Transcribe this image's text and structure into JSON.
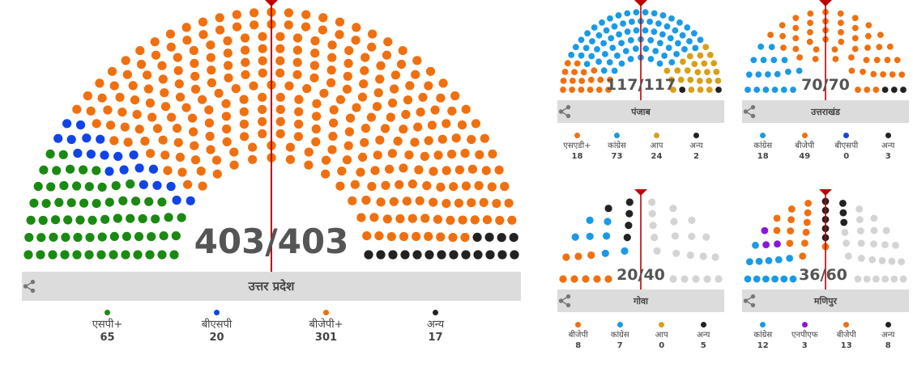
{
  "colors": {
    "sp": "#1a8a12",
    "bsp": "#1144e8",
    "bjp": "#f07010",
    "other": "#222222",
    "congress": "#1a9ae6",
    "aap": "#d8a01a",
    "npf": "#8a18d6",
    "empty": "#d4d4d4",
    "line": "#c00000",
    "bar": "#dcdcdc"
  },
  "chart_data": [
    {
      "type": "parliament",
      "state": "उत्तर प्रदेश",
      "counted": "403",
      "total": "403",
      "tally_label": "403/403",
      "seats": [
        {
          "party": "एसपी+",
          "seats": 65,
          "color": "#1a8a12"
        },
        {
          "party": "बीएसपी",
          "seats": 20,
          "color": "#1144e8"
        },
        {
          "party": "बीजेपी+",
          "seats": 301,
          "color": "#f07010"
        },
        {
          "party": "अन्य",
          "seats": 17,
          "color": "#222222"
        }
      ]
    },
    {
      "type": "parliament",
      "state": "पंजाब",
      "counted": "117",
      "total": "117",
      "tally_label": "117/117",
      "seats": [
        {
          "party": "एसएडी+",
          "seats": 18,
          "color": "#f07010"
        },
        {
          "party": "कांग्रेस",
          "seats": 73,
          "color": "#1a9ae6"
        },
        {
          "party": "आप",
          "seats": 24,
          "color": "#d8a01a"
        },
        {
          "party": "अन्य",
          "seats": 2,
          "color": "#222222"
        }
      ]
    },
    {
      "type": "parliament",
      "state": "उत्तराखंड",
      "counted": "70",
      "total": "70",
      "tally_label": "70/70",
      "seats": [
        {
          "party": "कांग्रेस",
          "seats": 18,
          "color": "#1a9ae6"
        },
        {
          "party": "बीजेपी",
          "seats": 49,
          "color": "#f07010"
        },
        {
          "party": "बीएसपी",
          "seats": 0,
          "color": "#1144e8"
        },
        {
          "party": "अन्य",
          "seats": 3,
          "color": "#222222"
        }
      ]
    },
    {
      "type": "parliament",
      "state": "गोवा",
      "counted": "20",
      "total": "40",
      "tally_label": "20/40",
      "seats": [
        {
          "party": "बीजेपी",
          "seats": 8,
          "color": "#f07010"
        },
        {
          "party": "कांग्रेस",
          "seats": 7,
          "color": "#1a9ae6"
        },
        {
          "party": "आप",
          "seats": 0,
          "color": "#d8a01a"
        },
        {
          "party": "अन्य",
          "seats": 5,
          "color": "#222222"
        }
      ]
    },
    {
      "type": "parliament",
      "state": "मणिपुर",
      "counted": "36",
      "total": "60",
      "tally_label": "36/60",
      "seats": [
        {
          "party": "कांग्रेस",
          "seats": 12,
          "color": "#1a9ae6"
        },
        {
          "party": "एनपीएफ",
          "seats": 3,
          "color": "#8a18d6"
        },
        {
          "party": "बीजेपी",
          "seats": 13,
          "color": "#f07010"
        },
        {
          "party": "अन्य",
          "seats": 8,
          "color": "#222222"
        }
      ]
    }
  ]
}
